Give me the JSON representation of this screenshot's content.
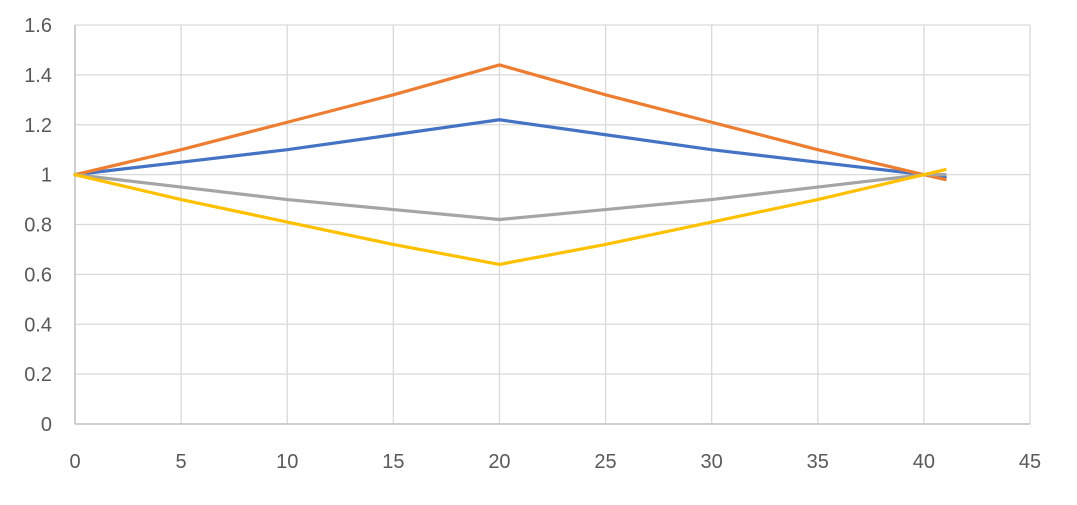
{
  "chart_data": {
    "type": "line",
    "title": "",
    "xlabel": "",
    "ylabel": "",
    "xlim": [
      0,
      45
    ],
    "ylim": [
      0,
      1.6
    ],
    "x_ticks": [
      "0",
      "5",
      "10",
      "15",
      "20",
      "25",
      "30",
      "35",
      "40",
      "45"
    ],
    "y_ticks": [
      "0",
      "0.2",
      "0.4",
      "0.6",
      "0.8",
      "1",
      "1.2",
      "1.4",
      "1.6"
    ],
    "grid": true,
    "legend": "none",
    "series": [
      {
        "color": "#4472C4",
        "points": [
          [
            0,
            1.0
          ],
          [
            5,
            1.05
          ],
          [
            10,
            1.1
          ],
          [
            15,
            1.16
          ],
          [
            20,
            1.22
          ],
          [
            25,
            1.16
          ],
          [
            30,
            1.1
          ],
          [
            35,
            1.05
          ],
          [
            40,
            1.0
          ],
          [
            41,
            0.99
          ]
        ]
      },
      {
        "color": "#ED7D31",
        "points": [
          [
            0,
            1.0
          ],
          [
            5,
            1.1
          ],
          [
            10,
            1.21
          ],
          [
            15,
            1.32
          ],
          [
            20,
            1.44
          ],
          [
            25,
            1.32
          ],
          [
            30,
            1.21
          ],
          [
            35,
            1.1
          ],
          [
            40,
            1.0
          ],
          [
            41,
            0.98
          ]
        ]
      },
      {
        "color": "#A5A5A5",
        "points": [
          [
            0,
            1.0
          ],
          [
            5,
            0.95
          ],
          [
            10,
            0.9
          ],
          [
            15,
            0.86
          ],
          [
            20,
            0.82
          ],
          [
            25,
            0.86
          ],
          [
            30,
            0.9
          ],
          [
            35,
            0.95
          ],
          [
            40,
            1.0
          ],
          [
            41,
            1.0
          ]
        ]
      },
      {
        "color": "#FFC000",
        "points": [
          [
            0,
            1.0
          ],
          [
            5,
            0.9
          ],
          [
            10,
            0.81
          ],
          [
            15,
            0.72
          ],
          [
            20,
            0.64
          ],
          [
            25,
            0.72
          ],
          [
            30,
            0.81
          ],
          [
            35,
            0.9
          ],
          [
            40,
            1.0
          ],
          [
            41,
            1.02
          ]
        ]
      }
    ]
  }
}
